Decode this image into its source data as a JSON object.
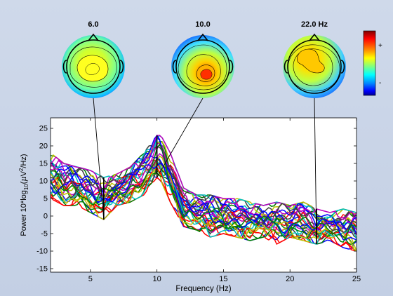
{
  "chart_data": {
    "type": "line",
    "title": "",
    "xlabel": "Frequency (Hz)",
    "ylabel_parts": {
      "a": "Power 10*log",
      "b": "10",
      "c": "(",
      "d": "μ",
      "e": "V",
      "f": "2",
      "g": "/Hz)"
    },
    "xlim": [
      2,
      25
    ],
    "ylim": [
      -16,
      28
    ],
    "xticks": [
      5,
      10,
      15,
      20,
      25
    ],
    "yticks": [
      -15,
      -10,
      -5,
      0,
      5,
      10,
      15,
      20,
      25
    ],
    "grid": false,
    "series_count": 30,
    "series_colors": [
      "#0000ff",
      "#008000",
      "#ff0000",
      "#00bfbf",
      "#bf00bf",
      "#bfbf00",
      "#404040"
    ],
    "envelope": {
      "x": [
        2,
        3,
        4,
        5,
        6,
        7,
        8,
        9,
        10,
        10.3,
        11,
        12,
        13,
        14,
        15,
        16,
        17,
        18,
        19,
        20,
        21,
        22,
        23,
        24,
        25
      ],
      "upper": [
        18,
        15,
        14,
        13,
        11,
        12,
        14,
        18,
        23,
        23,
        18,
        8,
        6,
        6,
        5,
        5,
        4,
        3,
        4,
        3,
        4,
        2,
        1,
        2,
        1
      ],
      "lower": [
        5,
        3,
        3,
        1,
        -1,
        3,
        4,
        6,
        11,
        10,
        4,
        -3,
        -4,
        -6,
        -5,
        -6,
        -7,
        -6,
        -8,
        -6,
        -7,
        -8,
        -7,
        -9,
        -10
      ]
    },
    "markers_hz": [
      6.0,
      10.0,
      22.0
    ],
    "topomaps": [
      {
        "label": "6.0",
        "hz": 6.0
      },
      {
        "label": "10.0",
        "hz": 10.0
      },
      {
        "label": "22.0 Hz",
        "hz": 22.0
      }
    ],
    "colorbar": {
      "plus": "+",
      "minus": "-",
      "colors": [
        "#7f0000",
        "#ff0000",
        "#ff8000",
        "#ffff00",
        "#80ff80",
        "#00ffff",
        "#0080ff",
        "#0000ff",
        "#00008f"
      ]
    }
  }
}
